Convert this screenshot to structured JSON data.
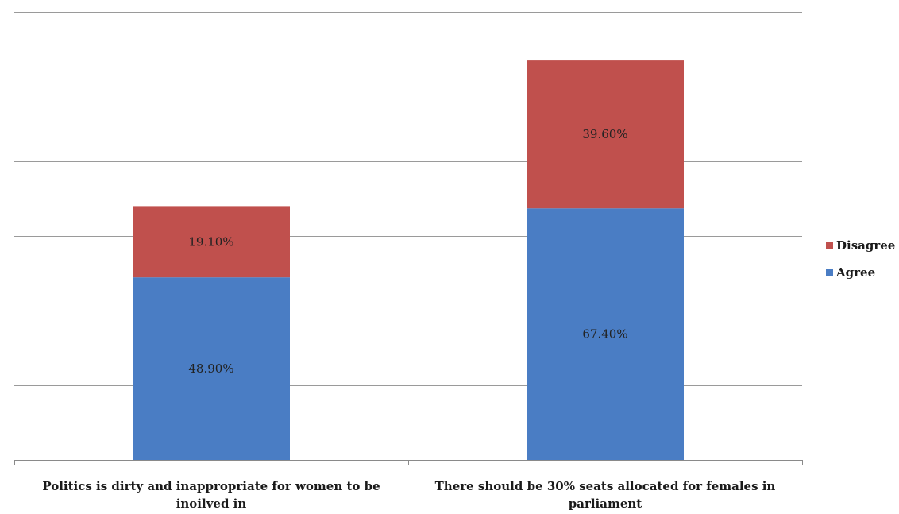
{
  "chart_data": {
    "type": "bar",
    "stacked": true,
    "categories": [
      [
        "Politics is dirty and inappropriate for women to be",
        "inoilved in"
      ],
      [
        "There should be 30% seats allocated for females in",
        "parliament"
      ]
    ],
    "series": [
      {
        "name": "Agree",
        "values": [
          48.9,
          67.4
        ],
        "labels": [
          "48.90%",
          "67.40%"
        ]
      },
      {
        "name": "Disagree",
        "values": [
          19.1,
          39.6
        ],
        "labels": [
          "19.10%",
          "39.60%"
        ]
      }
    ],
    "colors": {
      "Agree": "#4a7dc4",
      "Disagree": "#c0504d"
    },
    "ylim": [
      0,
      120
    ],
    "y_gridlines": [
      20,
      40,
      60,
      80,
      100,
      120
    ],
    "grid": true,
    "y_tick_labels_shown": false,
    "legend": {
      "placement": "right",
      "order": [
        "Disagree",
        "Agree"
      ]
    }
  }
}
